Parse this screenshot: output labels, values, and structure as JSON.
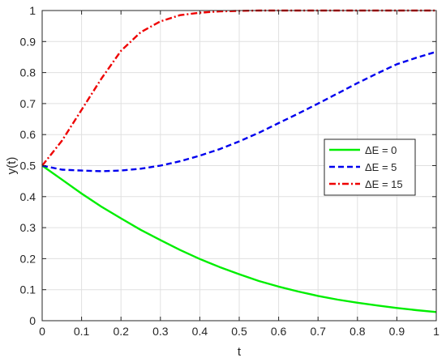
{
  "chart_data": {
    "type": "line",
    "title": "",
    "xlabel": "t",
    "ylabel": "y(t)",
    "xlim": [
      0,
      1
    ],
    "ylim": [
      0,
      1
    ],
    "xticks": [
      0,
      0.1,
      0.2,
      0.3,
      0.4,
      0.5,
      0.6,
      0.7,
      0.8,
      0.9,
      1
    ],
    "xtick_labels": [
      "0",
      "0.1",
      "0.2",
      "0.3",
      "0.4",
      "0.5",
      "0.6",
      "0.7",
      "0.8",
      "0.9",
      "1"
    ],
    "yticks": [
      0,
      0.1,
      0.2,
      0.3,
      0.4,
      0.5,
      0.6,
      0.7,
      0.8,
      0.9,
      1
    ],
    "ytick_labels": [
      "0",
      "0.1",
      "0.2",
      "0.3",
      "0.4",
      "0.5",
      "0.6",
      "0.7",
      "0.8",
      "0.9",
      "1"
    ],
    "grid": true,
    "legend_position": "right",
    "x": [
      0,
      0.05,
      0.1,
      0.15,
      0.2,
      0.25,
      0.3,
      0.35,
      0.4,
      0.45,
      0.5,
      0.55,
      0.6,
      0.65,
      0.7,
      0.75,
      0.8,
      0.85,
      0.9,
      0.95,
      1
    ],
    "series": [
      {
        "name": "ΔE = 0",
        "color": "#00ee00",
        "style": "solid",
        "values": [
          0.5,
          0.455,
          0.41,
          0.368,
          0.33,
          0.293,
          0.26,
          0.228,
          0.199,
          0.173,
          0.15,
          0.128,
          0.11,
          0.094,
          0.08,
          0.068,
          0.058,
          0.049,
          0.041,
          0.034,
          0.028
        ]
      },
      {
        "name": "ΔE = 5",
        "color": "#0000ee",
        "style": "dashed",
        "values": [
          0.5,
          0.487,
          0.484,
          0.482,
          0.484,
          0.49,
          0.5,
          0.514,
          0.532,
          0.553,
          0.578,
          0.606,
          0.637,
          0.668,
          0.7,
          0.733,
          0.766,
          0.797,
          0.827,
          0.848,
          0.867
        ]
      },
      {
        "name": "ΔE = 15",
        "color": "#ee0000",
        "style": "dashdot",
        "values": [
          0.5,
          0.58,
          0.68,
          0.78,
          0.87,
          0.93,
          0.965,
          0.985,
          0.993,
          0.997,
          0.999,
          1.0,
          1.0,
          1.0,
          1.0,
          1.0,
          1.0,
          1.0,
          1.0,
          1.0,
          1.0
        ]
      }
    ]
  }
}
